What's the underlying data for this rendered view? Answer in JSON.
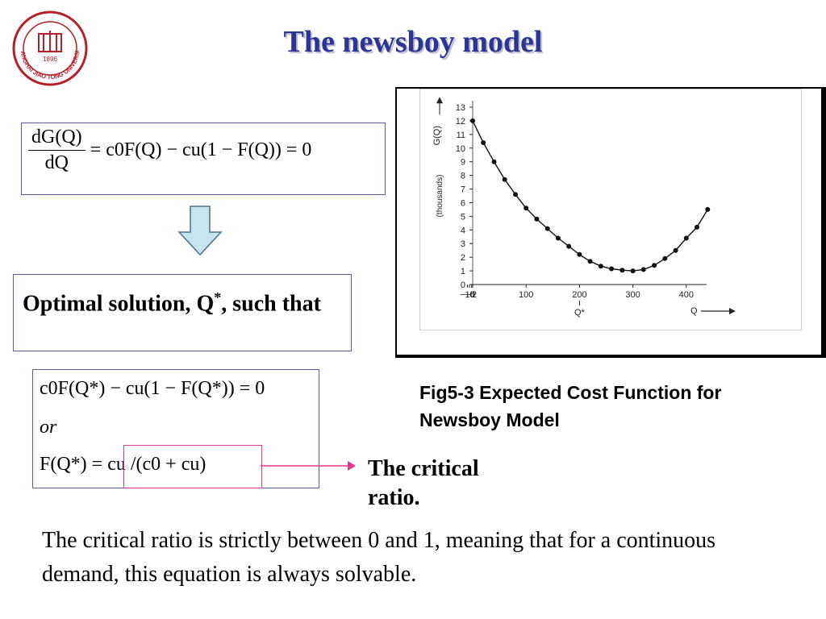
{
  "title": "The newsboy model",
  "logo": {
    "text": "SHANGHAI JIAO TONG UNIVERSITY",
    "year": "1896"
  },
  "equation_1": {
    "numerator": "dG(Q)",
    "denominator": "dQ",
    "rhs": "= c0F(Q) − cu(1 − F(Q)) = 0"
  },
  "optimal_solution": {
    "text_before": "Optimal solution, Q",
    "superscript": "*",
    "text_after": ", such that"
  },
  "equation_2": {
    "line1": "c0F(Q*) − cu(1 − F(Q*)) = 0",
    "line2": "or",
    "line3": "F(Q*) = cu /(c0 + cu)"
  },
  "critical_label": "The critical ratio.",
  "paragraph": "The critical ratio is strictly between 0 and 1, meaning that for a continuous demand, this equation is always solvable.",
  "figure": {
    "caption": "Fig5-3 Expected Cost Function for Newsboy Model",
    "y_axis_label": "G(Q)",
    "y_axis_unit": "(thousands)",
    "x_axis_label": "Q",
    "optimum_label": "Q*",
    "y_ticks": [
      "0",
      "1",
      "2",
      "3",
      "4",
      "5",
      "6",
      "7",
      "8",
      "9",
      "10",
      "11",
      "12",
      "13"
    ],
    "x_ticks": [
      "-10",
      "-6",
      "-2",
      "0",
      "100",
      "200",
      "300",
      "400"
    ]
  },
  "chart_data": {
    "type": "scatter",
    "title": "",
    "xlabel": "Q",
    "ylabel": "G(Q) (thousands)",
    "xlim": [
      -10,
      450
    ],
    "ylim": [
      0,
      13
    ],
    "grid": false,
    "series": [
      {
        "x": [
          0,
          20,
          40,
          60,
          80,
          100,
          120,
          140,
          160,
          180,
          200,
          220,
          240,
          260,
          280,
          300,
          320,
          340,
          360,
          380,
          400,
          420,
          440
        ],
        "values": [
          12.0,
          10.4,
          9.0,
          7.7,
          6.6,
          5.6,
          4.8,
          4.1,
          3.4,
          2.8,
          2.2,
          1.7,
          1.35,
          1.15,
          1.05,
          1.0,
          1.1,
          1.4,
          1.9,
          2.5,
          3.4,
          4.2,
          5.5
        ]
      }
    ]
  }
}
